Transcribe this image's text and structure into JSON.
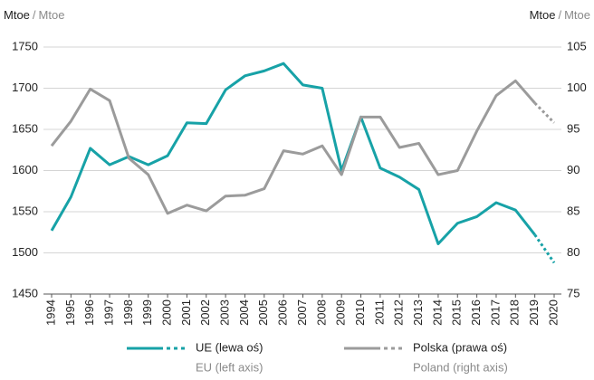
{
  "chart_data": {
    "type": "line",
    "ylabel": {
      "pl": "Mtoe",
      "en": "Mtoe"
    },
    "y2label": {
      "pl": "Mtoe",
      "en": "Mtoe"
    },
    "categories": [
      "1994",
      "1995",
      "1996",
      "1997",
      "1998",
      "1999",
      "2000",
      "2001",
      "2002",
      "2003",
      "2004",
      "2005",
      "2006",
      "2007",
      "2008",
      "2009",
      "2010",
      "2011",
      "2012",
      "2013",
      "2014",
      "2015",
      "2016",
      "2017",
      "2018",
      "2019",
      "2020"
    ],
    "series": [
      {
        "name": "UE (lewa oś)",
        "name_en": "EU (left axis)",
        "color": "#17a2a7",
        "axis": "y",
        "values": [
          1527,
          1568,
          1627,
          1607,
          1617,
          1607,
          1618,
          1658,
          1657,
          1698,
          1715,
          1721,
          1730,
          1704,
          1700,
          1600,
          1665,
          1603,
          1592,
          1577,
          1511,
          1536,
          1544,
          1561,
          1552,
          1522,
          1488
        ]
      },
      {
        "name": "Polska (prawa oś)",
        "name_en": "Poland (right axis)",
        "color": "#9b9b9b",
        "axis": "y2",
        "values": [
          93,
          96,
          99.9,
          98.5,
          91.5,
          89.5,
          84.8,
          85.8,
          85.1,
          86.9,
          87,
          87.8,
          92.4,
          92,
          93,
          89.5,
          96.5,
          96.5,
          92.8,
          93.3,
          89.5,
          90,
          94.8,
          99.1,
          100.9,
          98.2,
          95.8
        ]
      }
    ],
    "ylim": [
      1450,
      1750
    ],
    "yticks": [
      1450,
      1500,
      1550,
      1600,
      1650,
      1700,
      1750
    ],
    "y2lim": [
      75,
      105
    ],
    "y2ticks": [
      75,
      80,
      85,
      90,
      95,
      100,
      105
    ],
    "grid": true
  }
}
